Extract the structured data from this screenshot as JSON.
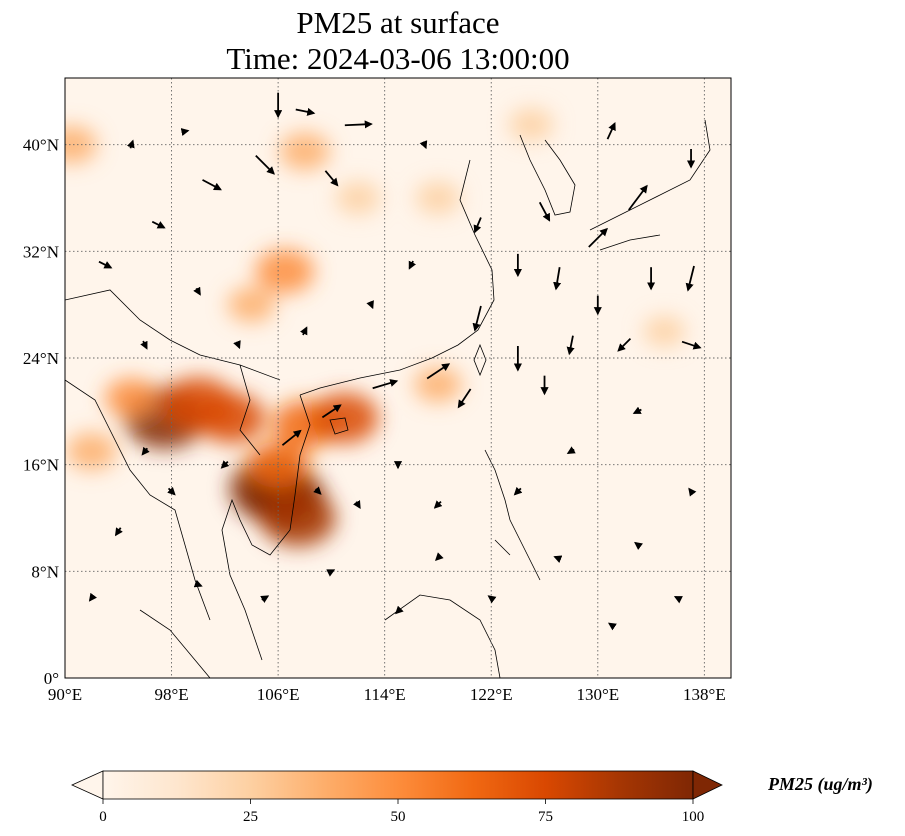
{
  "title": {
    "line1": "PM25 at surface",
    "line2": "Time: 2024-03-06 13:00:00"
  },
  "map": {
    "type": "pm25-concentration-map-with-wind-vectors",
    "lon_range": [
      90,
      140
    ],
    "lat_range": [
      0,
      45
    ],
    "x_ticks": [
      {
        "value": 90,
        "label": "90°E"
      },
      {
        "value": 98,
        "label": "98°E"
      },
      {
        "value": 106,
        "label": "106°E"
      },
      {
        "value": 114,
        "label": "114°E"
      },
      {
        "value": 122,
        "label": "122°E"
      },
      {
        "value": 130,
        "label": "130°E"
      },
      {
        "value": 138,
        "label": "138°E"
      }
    ],
    "y_ticks": [
      {
        "value": 0,
        "label": "0°"
      },
      {
        "value": 8,
        "label": "8°N"
      },
      {
        "value": 16,
        "label": "16°N"
      },
      {
        "value": 24,
        "label": "24°N"
      },
      {
        "value": 32,
        "label": "32°N"
      },
      {
        "value": 40,
        "label": "40°N"
      }
    ],
    "gridlines": true,
    "hotspots": [
      {
        "lon": 97.5,
        "lat": 19.5,
        "value": 95
      },
      {
        "lon": 100,
        "lat": 20.5,
        "value": 80
      },
      {
        "lon": 102.5,
        "lat": 19.5,
        "value": 70
      },
      {
        "lon": 105.5,
        "lat": 14.2,
        "value": 100
      },
      {
        "lon": 106.5,
        "lat": 13.5,
        "value": 95
      },
      {
        "lon": 107.5,
        "lat": 12,
        "value": 85
      },
      {
        "lon": 106,
        "lat": 16,
        "value": 60
      },
      {
        "lon": 108,
        "lat": 19,
        "value": 65
      },
      {
        "lon": 111,
        "lat": 19.5,
        "value": 70
      },
      {
        "lon": 92,
        "lat": 17,
        "value": 40
      },
      {
        "lon": 95,
        "lat": 21,
        "value": 45
      },
      {
        "lon": 106.5,
        "lat": 30.5,
        "value": 55
      },
      {
        "lon": 104,
        "lat": 28,
        "value": 35
      },
      {
        "lon": 108,
        "lat": 39.5,
        "value": 40
      },
      {
        "lon": 118,
        "lat": 36,
        "value": 30
      },
      {
        "lon": 112,
        "lat": 36,
        "value": 30
      },
      {
        "lon": 90.5,
        "lat": 40,
        "value": 40
      },
      {
        "lon": 125,
        "lat": 41.5,
        "value": 30
      },
      {
        "lon": 135,
        "lat": 26,
        "value": 25
      },
      {
        "lon": 118,
        "lat": 22,
        "value": 35
      }
    ],
    "wind_vectors": [
      {
        "lon": 106,
        "lat": 43,
        "u": 0,
        "v": -2
      },
      {
        "lon": 108,
        "lat": 42.5,
        "u": 1.5,
        "v": -0.3
      },
      {
        "lon": 112,
        "lat": 41.5,
        "u": 2.2,
        "v": 0.1
      },
      {
        "lon": 105,
        "lat": 38.5,
        "u": 1.5,
        "v": -1.5
      },
      {
        "lon": 110,
        "lat": 37.5,
        "u": 1,
        "v": -1.2
      },
      {
        "lon": 101,
        "lat": 37,
        "u": 1.5,
        "v": -0.8
      },
      {
        "lon": 97,
        "lat": 34,
        "u": 1,
        "v": -0.5
      },
      {
        "lon": 93,
        "lat": 31,
        "u": 1,
        "v": -0.5
      },
      {
        "lon": 100,
        "lat": 29,
        "u": 0.3,
        "v": -0.5
      },
      {
        "lon": 121,
        "lat": 34,
        "u": -0.5,
        "v": -1.2
      },
      {
        "lon": 124,
        "lat": 31,
        "u": 0,
        "v": -1.8
      },
      {
        "lon": 127,
        "lat": 30,
        "u": -0.3,
        "v": -1.8
      },
      {
        "lon": 130,
        "lat": 28,
        "u": 0,
        "v": -1.5
      },
      {
        "lon": 134,
        "lat": 30,
        "u": 0,
        "v": -1.8
      },
      {
        "lon": 137,
        "lat": 30,
        "u": -0.5,
        "v": -2
      },
      {
        "lon": 133,
        "lat": 36,
        "u": 1.5,
        "v": 2
      },
      {
        "lon": 130,
        "lat": 33,
        "u": 1.5,
        "v": 1.5
      },
      {
        "lon": 126,
        "lat": 35,
        "u": 0.8,
        "v": -1.5
      },
      {
        "lon": 121,
        "lat": 27,
        "u": -0.5,
        "v": -2
      },
      {
        "lon": 118,
        "lat": 23,
        "u": 1.8,
        "v": 1.2
      },
      {
        "lon": 114,
        "lat": 22,
        "u": 2,
        "v": 0.6
      },
      {
        "lon": 110,
        "lat": 20,
        "u": 1.5,
        "v": 1
      },
      {
        "lon": 107,
        "lat": 18,
        "u": 1.5,
        "v": 1.2
      },
      {
        "lon": 124,
        "lat": 24,
        "u": 0,
        "v": -2
      },
      {
        "lon": 126,
        "lat": 22,
        "u": 0,
        "v": -1.5
      },
      {
        "lon": 128,
        "lat": 25,
        "u": -0.3,
        "v": -1.5
      },
      {
        "lon": 132,
        "lat": 25,
        "u": -1,
        "v": -1
      },
      {
        "lon": 137,
        "lat": 25,
        "u": 1.5,
        "v": -0.5
      },
      {
        "lon": 120,
        "lat": 21,
        "u": -1,
        "v": -1.5
      },
      {
        "lon": 115,
        "lat": 16,
        "u": 0,
        "v": -0.5
      },
      {
        "lon": 112,
        "lat": 13,
        "u": 0.3,
        "v": -0.5
      },
      {
        "lon": 118,
        "lat": 13,
        "u": -0.5,
        "v": -0.5
      },
      {
        "lon": 124,
        "lat": 14,
        "u": -0.5,
        "v": -0.5
      },
      {
        "lon": 128,
        "lat": 17,
        "u": -0.5,
        "v": -0.3
      },
      {
        "lon": 133,
        "lat": 20,
        "u": -0.6,
        "v": -0.3
      },
      {
        "lon": 98,
        "lat": 14,
        "u": 0.5,
        "v": -0.5
      },
      {
        "lon": 94,
        "lat": 11,
        "u": -0.4,
        "v": -0.6
      },
      {
        "lon": 92,
        "lat": 6,
        "u": -0.3,
        "v": -0.4
      },
      {
        "lon": 100,
        "lat": 7,
        "u": 0.5,
        "v": -0.2
      },
      {
        "lon": 105,
        "lat": 6,
        "u": 0.5,
        "v": 0.3
      },
      {
        "lon": 110,
        "lat": 8,
        "u": 0.4,
        "v": 0.2
      },
      {
        "lon": 115,
        "lat": 5,
        "u": -0.3,
        "v": -0.3
      },
      {
        "lon": 122,
        "lat": 6,
        "u": -0.4,
        "v": 0.3
      },
      {
        "lon": 127,
        "lat": 9,
        "u": -0.5,
        "v": 0.2
      },
      {
        "lon": 133,
        "lat": 10,
        "u": -0.4,
        "v": 0.3
      },
      {
        "lon": 137,
        "lat": 14,
        "u": -0.3,
        "v": 0.4
      },
      {
        "lon": 96,
        "lat": 25,
        "u": 0.3,
        "v": -0.6
      },
      {
        "lon": 103,
        "lat": 25,
        "u": 0.2,
        "v": -0.5
      },
      {
        "lon": 108,
        "lat": 26,
        "u": 0.3,
        "v": 0.6
      },
      {
        "lon": 113,
        "lat": 28,
        "u": 0.2,
        "v": -0.5
      },
      {
        "lon": 116,
        "lat": 31,
        "u": -0.3,
        "v": -0.6
      },
      {
        "lon": 95,
        "lat": 40,
        "u": 0.2,
        "v": 0.6
      },
      {
        "lon": 99,
        "lat": 41,
        "u": 0.5,
        "v": 0.1
      },
      {
        "lon": 117,
        "lat": 40,
        "u": 0.2,
        "v": -0.5
      },
      {
        "lon": 131,
        "lat": 41,
        "u": 0.6,
        "v": 1.3
      },
      {
        "lon": 137,
        "lat": 39,
        "u": 0,
        "v": -1.5
      },
      {
        "lon": 102,
        "lat": 16,
        "u": -0.5,
        "v": -0.5
      },
      {
        "lon": 96,
        "lat": 17,
        "u": -0.4,
        "v": -0.5
      },
      {
        "lon": 109,
        "lat": 14,
        "u": 0.4,
        "v": -0.4
      },
      {
        "lon": 118,
        "lat": 9,
        "u": -0.3,
        "v": -0.3
      },
      {
        "lon": 131,
        "lat": 4,
        "u": -0.3,
        "v": 0.2
      },
      {
        "lon": 136,
        "lat": 6,
        "u": -0.4,
        "v": 0.2
      }
    ]
  },
  "colorbar": {
    "label": "PM25 (ug/m³)",
    "min": 0,
    "max": 100,
    "extend": "both",
    "colors": [
      "#fff5eb",
      "#fee6ce",
      "#fdd0a2",
      "#fdae6b",
      "#fd8d3c",
      "#f16913",
      "#d94801",
      "#a63603",
      "#7f2704"
    ],
    "ticks": [
      {
        "value": 0,
        "label": "0"
      },
      {
        "value": 25,
        "label": "25"
      },
      {
        "value": 50,
        "label": "50"
      },
      {
        "value": 75,
        "label": "75"
      },
      {
        "value": 100,
        "label": "100"
      }
    ]
  }
}
